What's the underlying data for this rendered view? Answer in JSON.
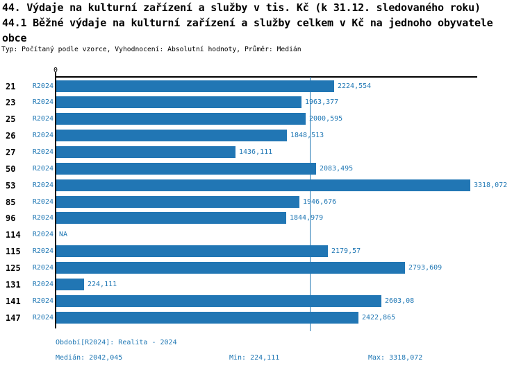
{
  "header": {
    "title_line1": "44. Výdaje na kulturní zařízení a služby v tis. Kč (k 31.12. sledovaného roku)",
    "title_line2": "44.1 Běžné výdaje na kulturní zařízení a služby celkem v Kč na jednoho obyvatele",
    "title_line3": "obce",
    "meta": "Typ: Počítaný podle vzorce, Vyhodnocení: Absolutní hodnoty, Průměr: Medián"
  },
  "chart_data": {
    "type": "bar",
    "orientation": "horizontal",
    "axis_zero_label": "0",
    "series_label": "R2024",
    "categories": [
      "21",
      "23",
      "25",
      "26",
      "27",
      "50",
      "53",
      "85",
      "96",
      "114",
      "115",
      "125",
      "131",
      "141",
      "147"
    ],
    "values": [
      2224.554,
      1963.377,
      2000.595,
      1848.513,
      1436.111,
      2083.495,
      3318.072,
      1946.676,
      1844.979,
      null,
      2179.57,
      2793.609,
      224.111,
      2603.08,
      2422.865
    ],
    "value_labels": [
      "2224,554",
      "1963,377",
      "2000,595",
      "1848,513",
      "1436,111",
      "2083,495",
      "3318,072",
      "1946,676",
      "1844,979",
      "NA",
      "2179,57",
      "2793,609",
      "224,111",
      "2603,08",
      "2422,865"
    ],
    "na_label": "NA",
    "median": 2042.045,
    "xlim": [
      0,
      3318.072
    ],
    "grid": false,
    "bar_color": "#2176b4",
    "median_line_color": "#2378b4",
    "label_color": "#1f77b4"
  },
  "footer": {
    "period": "Období[R2024]: Realita - 2024",
    "median": "Medián: 2042,045",
    "min": "Min: 224,111",
    "max": "Max: 3318,072"
  }
}
